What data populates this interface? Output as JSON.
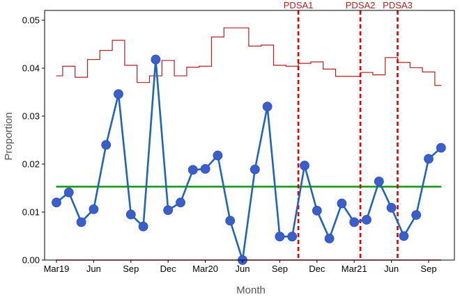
{
  "chart_data": {
    "type": "line",
    "title": "",
    "xlabel": "Month",
    "ylabel": "Proportion",
    "ylim": [
      0,
      0.05
    ],
    "yticks": [
      "0.00",
      "0.01",
      "0.02",
      "0.03",
      "0.04",
      "0.05"
    ],
    "xtick_labels": [
      {
        "index": 0,
        "label": "Mar19"
      },
      {
        "index": 3,
        "label": "Jun"
      },
      {
        "index": 6,
        "label": "Sep"
      },
      {
        "index": 9,
        "label": "Dec"
      },
      {
        "index": 12,
        "label": "Mar20"
      },
      {
        "index": 15,
        "label": "Jun"
      },
      {
        "index": 18,
        "label": "Sep"
      },
      {
        "index": 21,
        "label": "Dec"
      },
      {
        "index": 24,
        "label": "Mar21"
      },
      {
        "index": 27,
        "label": "Jun"
      },
      {
        "index": 30,
        "label": "Sep"
      }
    ],
    "grid": false,
    "legend": "none",
    "series": [
      {
        "role": "proportion",
        "color": "#3a5fcd",
        "line_color": "#1f64b8",
        "values": [
          0.012,
          0.0141,
          0.0079,
          0.0106,
          0.024,
          0.0346,
          0.0095,
          0.007,
          0.0418,
          0.0104,
          0.012,
          0.0188,
          0.019,
          0.0218,
          0.0082,
          0.0,
          0.0189,
          0.032,
          0.0049,
          0.0049,
          0.0197,
          0.0103,
          0.0045,
          0.0118,
          0.0079,
          0.0084,
          0.0164,
          0.0109,
          0.005,
          0.0094,
          0.0211,
          0.0234
        ]
      },
      {
        "role": "center-line",
        "color": "#1a9a1a",
        "values": [
          0.0153
        ]
      },
      {
        "role": "upper-control-limit",
        "color": "#b21f1f",
        "values": [
          0.0384,
          0.0404,
          0.0381,
          0.0418,
          0.0437,
          0.0458,
          0.0406,
          0.037,
          0.0384,
          0.0416,
          0.0384,
          0.0402,
          0.0404,
          0.0465,
          0.0484,
          0.0484,
          0.0446,
          0.0448,
          0.0406,
          0.0404,
          0.041,
          0.0413,
          0.0398,
          0.0383,
          0.0383,
          0.0391,
          0.0386,
          0.0422,
          0.0412,
          0.0401,
          0.0392,
          0.0364
        ]
      },
      {
        "role": "lower-control-limit",
        "color": "#b21f1f",
        "values": [
          0.0
        ]
      }
    ],
    "phase_markers": [
      {
        "label": "PDSA1",
        "index": 20,
        "color": "#e00000"
      },
      {
        "label": "PDSA2",
        "index": 25,
        "color": "#e00000"
      },
      {
        "label": "PDSA3",
        "index": 28,
        "color": "#e00000"
      }
    ]
  }
}
